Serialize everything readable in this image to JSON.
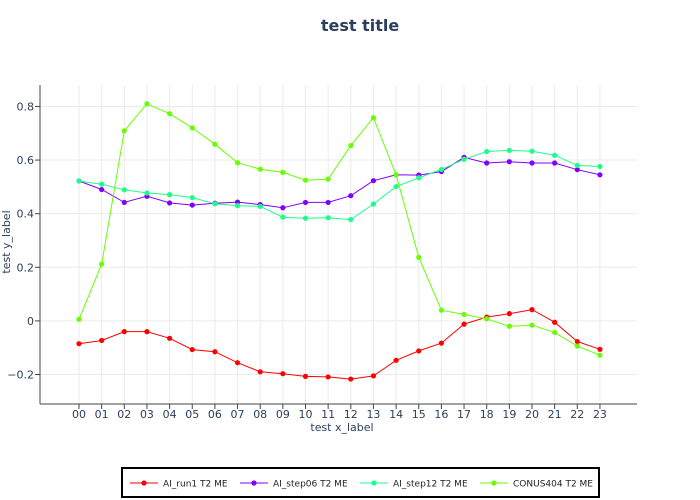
{
  "chart_data": {
    "type": "line",
    "title": "test title",
    "xlabel": "test x_label",
    "ylabel": "test y_label",
    "x": [
      "00",
      "01",
      "02",
      "03",
      "04",
      "05",
      "06",
      "07",
      "08",
      "09",
      "10",
      "11",
      "12",
      "13",
      "14",
      "15",
      "16",
      "17",
      "18",
      "19",
      "20",
      "21",
      "22",
      "23"
    ],
    "ylim": [
      -0.31,
      0.88
    ],
    "yticks": [
      -0.2,
      0,
      0.2,
      0.4,
      0.6,
      0.8
    ],
    "ytick_labels": [
      "−0.2",
      "0",
      "0.2",
      "0.4",
      "0.6",
      "0.8"
    ],
    "grid": true,
    "legend_position": "bottom",
    "series": [
      {
        "name": "AI_run1 T2 ME",
        "color": "#ff0000",
        "values": [
          -0.085,
          -0.073,
          -0.04,
          -0.04,
          -0.065,
          -0.107,
          -0.115,
          -0.156,
          -0.19,
          -0.197,
          -0.207,
          -0.209,
          -0.217,
          -0.205,
          -0.147,
          -0.112,
          -0.083,
          -0.012,
          0.014,
          0.027,
          0.042,
          -0.005,
          -0.077,
          -0.106
        ]
      },
      {
        "name": "AI_step06 T2 ME",
        "color": "#8000ff",
        "values": [
          0.522,
          0.49,
          0.442,
          0.465,
          0.44,
          0.432,
          0.439,
          0.443,
          0.434,
          0.422,
          0.442,
          0.442,
          0.467,
          0.523,
          0.545,
          0.544,
          0.557,
          0.61,
          0.589,
          0.594,
          0.589,
          0.589,
          0.564,
          0.545
        ]
      },
      {
        "name": "AI_step12 T2 ME",
        "color": "#1aff8c",
        "values": [
          0.522,
          0.51,
          0.489,
          0.477,
          0.471,
          0.46,
          0.437,
          0.43,
          0.427,
          0.387,
          0.383,
          0.385,
          0.378,
          0.436,
          0.501,
          0.534,
          0.565,
          0.603,
          0.632,
          0.636,
          0.633,
          0.618,
          0.58,
          0.576
        ]
      },
      {
        "name": "CONUS404 T2 ME",
        "color": "#66ff00",
        "values": [
          0.006,
          0.212,
          0.709,
          0.81,
          0.773,
          0.72,
          0.659,
          0.59,
          0.566,
          0.554,
          0.525,
          0.529,
          0.654,
          0.758,
          0.545,
          0.237,
          0.04,
          0.024,
          0.008,
          -0.02,
          -0.016,
          -0.043,
          -0.094,
          -0.128
        ]
      }
    ]
  }
}
